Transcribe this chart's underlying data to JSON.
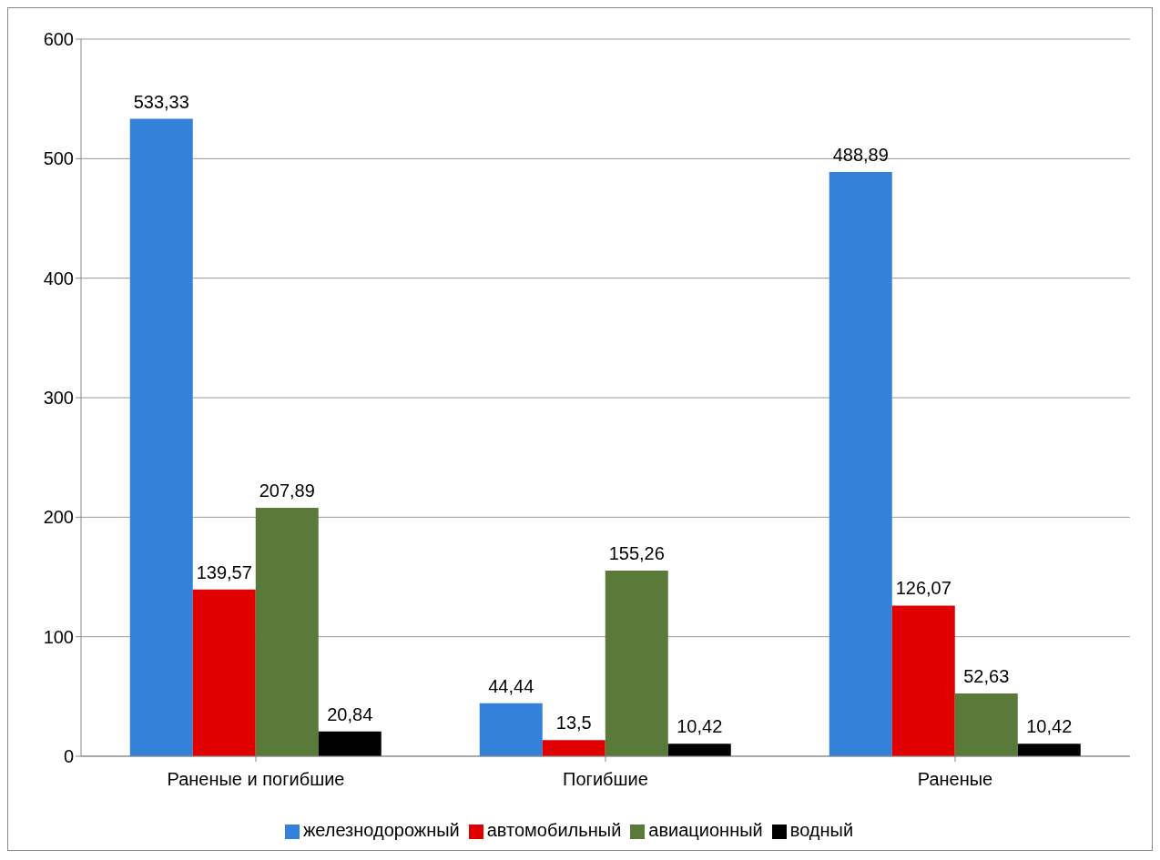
{
  "chart_data": {
    "type": "bar",
    "categories": [
      "Раненые и погибшие",
      "Погибшие",
      "Раненые"
    ],
    "series": [
      {
        "name": "железнодорожный",
        "color": "#3381d8",
        "values": [
          533.33,
          44.44,
          488.89
        ],
        "value_labels": [
          "533,33",
          "44,44",
          "488,89"
        ]
      },
      {
        "name": "автомобильный",
        "color": "#e00000",
        "values": [
          139.57,
          13.5,
          126.07
        ],
        "value_labels": [
          "139,57",
          "13,5",
          "126,07"
        ]
      },
      {
        "name": "авиационный",
        "color": "#5a7a3a",
        "values": [
          207.89,
          155.26,
          52.63
        ],
        "value_labels": [
          "207,89",
          "155,26",
          "52,63"
        ]
      },
      {
        "name": "водный",
        "color": "#000000",
        "values": [
          20.84,
          10.42,
          10.42
        ],
        "value_labels": [
          "20,84",
          "10,42",
          "10,42"
        ]
      }
    ],
    "ylim": [
      0,
      600
    ],
    "yticks": [
      0,
      100,
      200,
      300,
      400,
      500,
      600
    ],
    "grid": "y",
    "legend": "bottom"
  }
}
